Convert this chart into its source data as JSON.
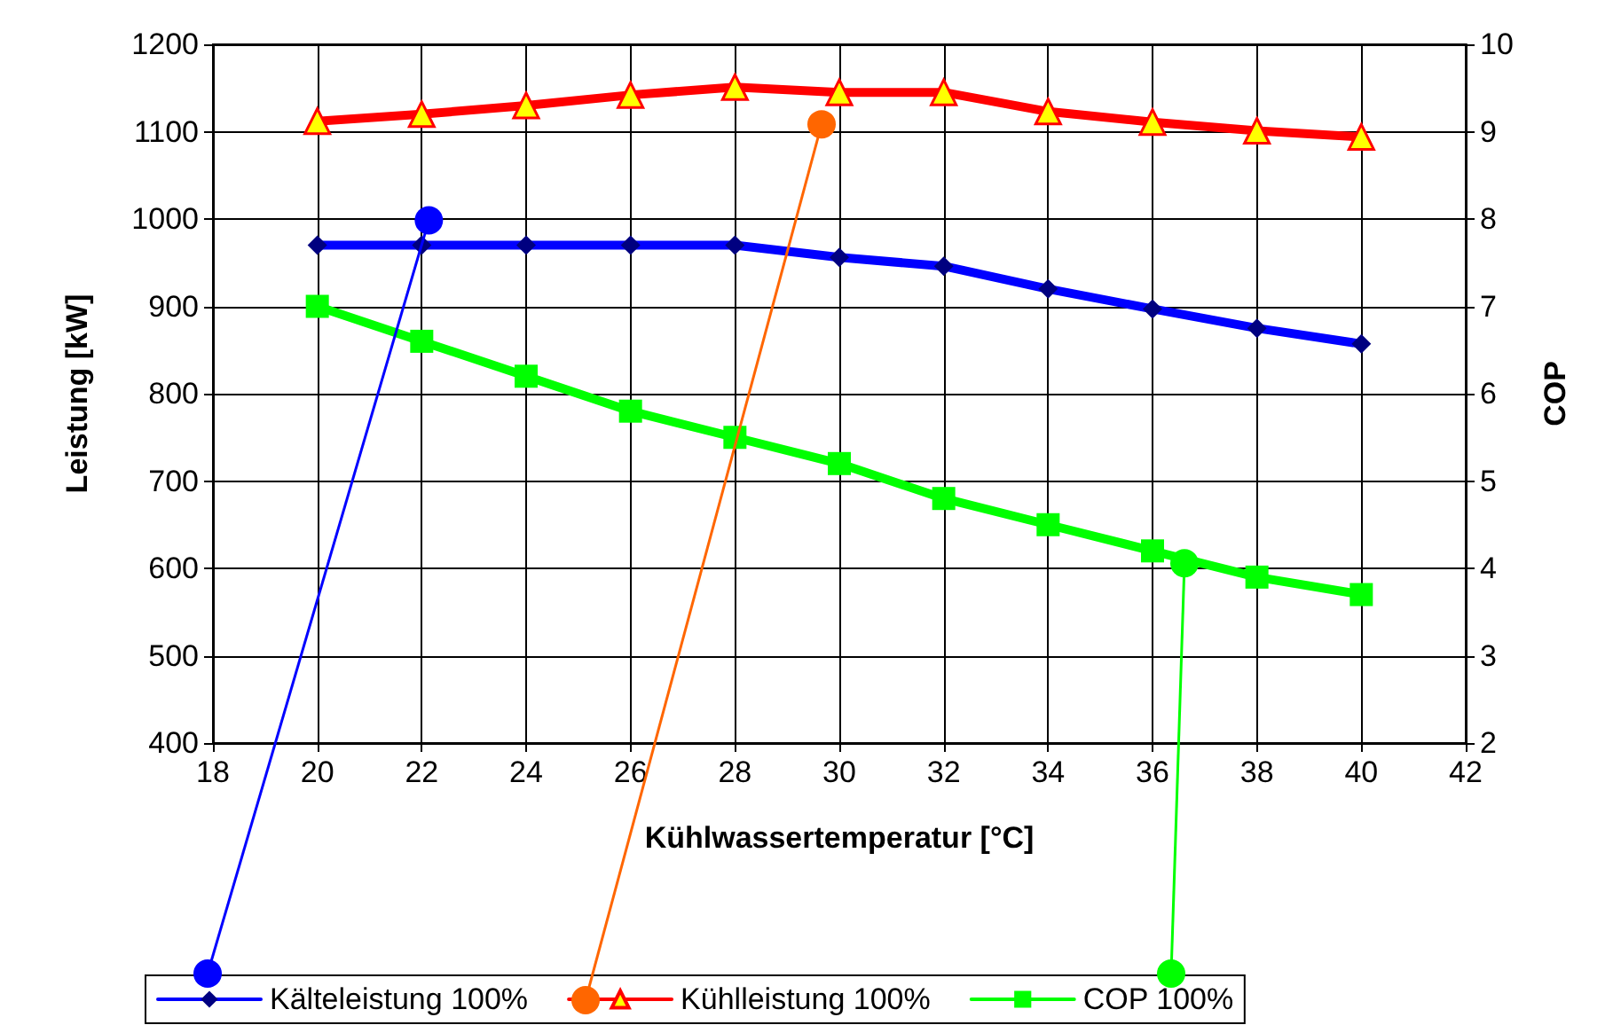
{
  "chart_data": {
    "type": "line",
    "xlabel": "Kühlwassertemperatur [°C]",
    "ylabel": "Leistung [kW]",
    "y2label": "COP",
    "x": [
      20,
      22,
      24,
      26,
      28,
      30,
      32,
      34,
      36,
      38,
      40
    ],
    "series": [
      {
        "name": "Kälteleistung 100%",
        "color": "#0000ff",
        "marker": "diamond",
        "values": [
          970,
          970,
          970,
          970,
          970,
          956,
          946,
          920,
          897,
          875,
          857
        ]
      },
      {
        "name": "Kühlleistung 100%",
        "color": "#ff0000",
        "marker": "triangle",
        "values": [
          1112,
          1120,
          1130,
          1142,
          1151,
          1145,
          1145,
          1123,
          1111,
          1101,
          1094
        ]
      },
      {
        "name": "COP 100%",
        "color": "#00ff00",
        "marker": "square",
        "axis": "y2",
        "values": [
          7.0,
          6.6,
          6.2,
          5.8,
          5.5,
          5.2,
          4.8,
          4.5,
          4.2,
          3.9,
          3.7
        ]
      }
    ],
    "xlim": [
      18,
      42
    ],
    "xticks": [
      18,
      20,
      22,
      24,
      26,
      28,
      30,
      32,
      34,
      36,
      38,
      40,
      42
    ],
    "ylim": [
      400,
      1200
    ],
    "yticks": [
      400,
      500,
      600,
      700,
      800,
      900,
      1000,
      1100,
      1200
    ],
    "y2lim": [
      2,
      10
    ],
    "y2ticks": [
      2,
      3,
      4,
      5,
      6,
      7,
      8,
      9,
      10
    ],
    "grid": true,
    "legend": "bottom",
    "line_style": "solid"
  }
}
